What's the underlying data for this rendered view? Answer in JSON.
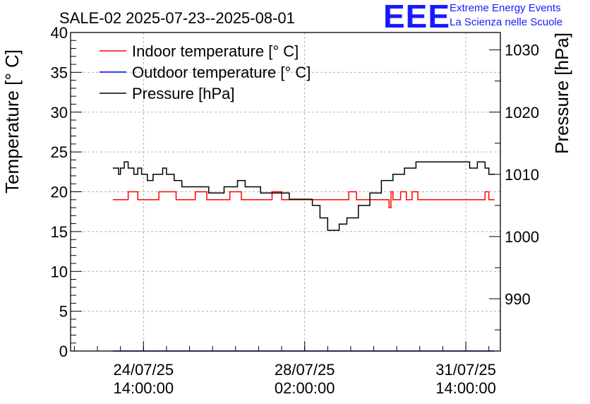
{
  "logo": {
    "mark": "EEE",
    "line1": "Extreme Energy Events",
    "line2": "La Scienza nelle Scuole",
    "color": "#1a1aff"
  },
  "chart_data": {
    "type": "line",
    "title": "SALE-02 2025-07-23--2025-08-01",
    "ylabel": "Temperature [° C]",
    "y2label": "Pressure [hPa]",
    "ylim": [
      0,
      40
    ],
    "y2lim": [
      981.6,
      1032.8
    ],
    "xlim": [
      "2025-07-23 00:00:00",
      "2025-08-01 08:00:00"
    ],
    "yticks": [
      0,
      5,
      10,
      15,
      20,
      25,
      30,
      35,
      40
    ],
    "y2ticks": [
      990,
      1000,
      1010,
      1020,
      1030
    ],
    "xticks": [
      {
        "x": "2025-07-24 14:00:00",
        "line1": "24/07/25",
        "line2": "14:00:00"
      },
      {
        "x": "2025-07-28 02:00:00",
        "line1": "28/07/25",
        "line2": "02:00:00"
      },
      {
        "x": "2025-07-31 14:00:00",
        "line1": "31/07/25",
        "line2": "14:00:00"
      }
    ],
    "grid": true,
    "legend": "top-left",
    "series": [
      {
        "name": "Indoor temperature [° C]",
        "axis": "left",
        "color": "#ff0000",
        "points": [
          [
            "2025-07-23 22:00:00",
            19
          ],
          [
            "2025-07-24 05:00:00",
            19
          ],
          [
            "2025-07-24 06:00:00",
            20
          ],
          [
            "2025-07-24 10:00:00",
            20
          ],
          [
            "2025-07-24 11:00:00",
            19
          ],
          [
            "2025-07-24 21:00:00",
            19
          ],
          [
            "2025-07-24 22:00:00",
            20
          ],
          [
            "2025-07-25 06:00:00",
            20
          ],
          [
            "2025-07-25 07:00:00",
            19
          ],
          [
            "2025-07-25 16:00:00",
            19
          ],
          [
            "2025-07-25 17:00:00",
            20
          ],
          [
            "2025-07-25 22:00:00",
            20
          ],
          [
            "2025-07-25 23:00:00",
            19
          ],
          [
            "2025-07-26 10:00:00",
            19
          ],
          [
            "2025-07-26 11:00:00",
            20
          ],
          [
            "2025-07-26 16:00:00",
            20
          ],
          [
            "2025-07-26 17:00:00",
            19
          ],
          [
            "2025-07-27 08:00:00",
            19
          ],
          [
            "2025-07-27 09:00:00",
            20
          ],
          [
            "2025-07-27 13:00:00",
            20
          ],
          [
            "2025-07-27 14:00:00",
            19
          ],
          [
            "2025-07-29 00:00:00",
            19
          ],
          [
            "2025-07-29 01:00:00",
            20
          ],
          [
            "2025-07-29 04:00:00",
            20
          ],
          [
            "2025-07-29 05:00:00",
            19
          ],
          [
            "2025-07-29 21:00:00",
            19
          ],
          [
            "2025-07-29 22:00:00",
            18
          ],
          [
            "2025-07-29 23:00:00",
            20
          ],
          [
            "2025-07-30 00:00:00",
            19
          ],
          [
            "2025-07-30 03:00:00",
            19
          ],
          [
            "2025-07-30 04:00:00",
            20
          ],
          [
            "2025-07-30 06:00:00",
            20
          ],
          [
            "2025-07-30 07:00:00",
            19
          ],
          [
            "2025-07-30 09:00:00",
            19
          ],
          [
            "2025-07-30 10:00:00",
            20
          ],
          [
            "2025-07-30 12:00:00",
            20
          ],
          [
            "2025-07-30 13:00:00",
            19
          ],
          [
            "2025-07-31 23:00:00",
            19
          ],
          [
            "2025-08-01 00:00:00",
            20
          ],
          [
            "2025-08-01 01:00:00",
            20
          ],
          [
            "2025-08-01 02:00:00",
            19
          ],
          [
            "2025-08-01 05:00:00",
            19
          ]
        ]
      },
      {
        "name": "Outdoor temperature [° C]",
        "axis": "left",
        "color": "#0000ff",
        "points": [
          [
            "2025-07-23 22:00:00",
            0
          ],
          [
            "2025-08-01 05:00:00",
            0
          ]
        ]
      },
      {
        "name": "Pressure [hPa]",
        "axis": "right",
        "color": "#000000",
        "points": [
          [
            "2025-07-23 22:00:00",
            1011
          ],
          [
            "2025-07-24 01:00:00",
            1010
          ],
          [
            "2025-07-24 02:00:00",
            1011
          ],
          [
            "2025-07-24 04:00:00",
            1012
          ],
          [
            "2025-07-24 06:00:00",
            1011
          ],
          [
            "2025-07-24 09:00:00",
            1010
          ],
          [
            "2025-07-24 11:00:00",
            1011
          ],
          [
            "2025-07-24 13:00:00",
            1010
          ],
          [
            "2025-07-24 16:00:00",
            1009
          ],
          [
            "2025-07-24 19:00:00",
            1010
          ],
          [
            "2025-07-25 00:00:00",
            1011
          ],
          [
            "2025-07-25 02:00:00",
            1010
          ],
          [
            "2025-07-25 06:00:00",
            1009
          ],
          [
            "2025-07-25 10:00:00",
            1008
          ],
          [
            "2025-07-25 16:00:00",
            1008
          ],
          [
            "2025-07-26 00:00:00",
            1007
          ],
          [
            "2025-07-26 08:00:00",
            1008
          ],
          [
            "2025-07-26 15:00:00",
            1009
          ],
          [
            "2025-07-26 19:00:00",
            1008
          ],
          [
            "2025-07-27 03:00:00",
            1007
          ],
          [
            "2025-07-27 12:00:00",
            1007
          ],
          [
            "2025-07-27 18:00:00",
            1006
          ],
          [
            "2025-07-28 00:00:00",
            1006
          ],
          [
            "2025-07-28 06:00:00",
            1005
          ],
          [
            "2025-07-28 10:00:00",
            1003
          ],
          [
            "2025-07-28 14:00:00",
            1001
          ],
          [
            "2025-07-28 20:00:00",
            1002
          ],
          [
            "2025-07-29 00:00:00",
            1003
          ],
          [
            "2025-07-29 06:00:00",
            1005
          ],
          [
            "2025-07-29 12:00:00",
            1007
          ],
          [
            "2025-07-29 18:00:00",
            1009
          ],
          [
            "2025-07-30 00:00:00",
            1010
          ],
          [
            "2025-07-30 06:00:00",
            1011
          ],
          [
            "2025-07-30 12:00:00",
            1012
          ],
          [
            "2025-07-31 06:00:00",
            1012
          ],
          [
            "2025-07-31 12:00:00",
            1012
          ],
          [
            "2025-07-31 16:00:00",
            1011
          ],
          [
            "2025-07-31 20:00:00",
            1012
          ],
          [
            "2025-08-01 00:00:00",
            1011
          ],
          [
            "2025-08-01 02:00:00",
            1010
          ],
          [
            "2025-08-01 05:00:00",
            1010
          ]
        ]
      }
    ]
  }
}
